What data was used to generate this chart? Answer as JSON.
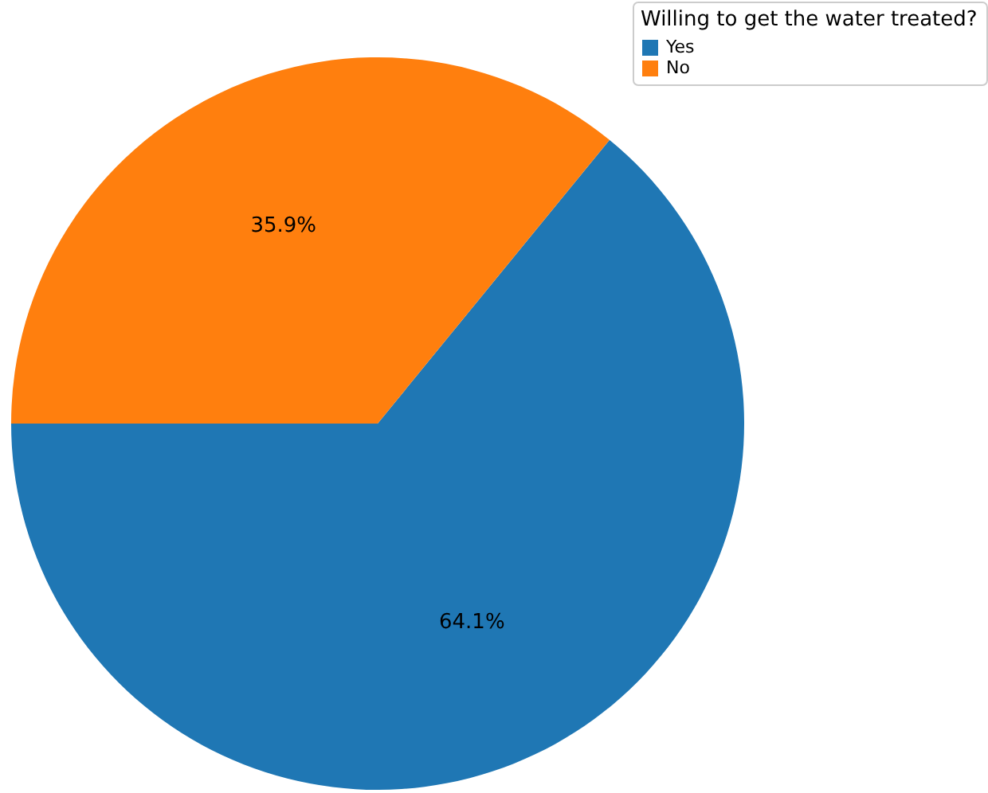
{
  "chart_data": {
    "type": "pie",
    "legend_title": "Willing to get the water treated?",
    "categories": [
      "Yes",
      "No"
    ],
    "values": [
      64.1,
      35.9
    ],
    "colors": [
      "#1f77b4",
      "#ff7f0e"
    ],
    "value_labels": [
      "64.1%",
      "35.9%"
    ],
    "legend": "top right"
  }
}
